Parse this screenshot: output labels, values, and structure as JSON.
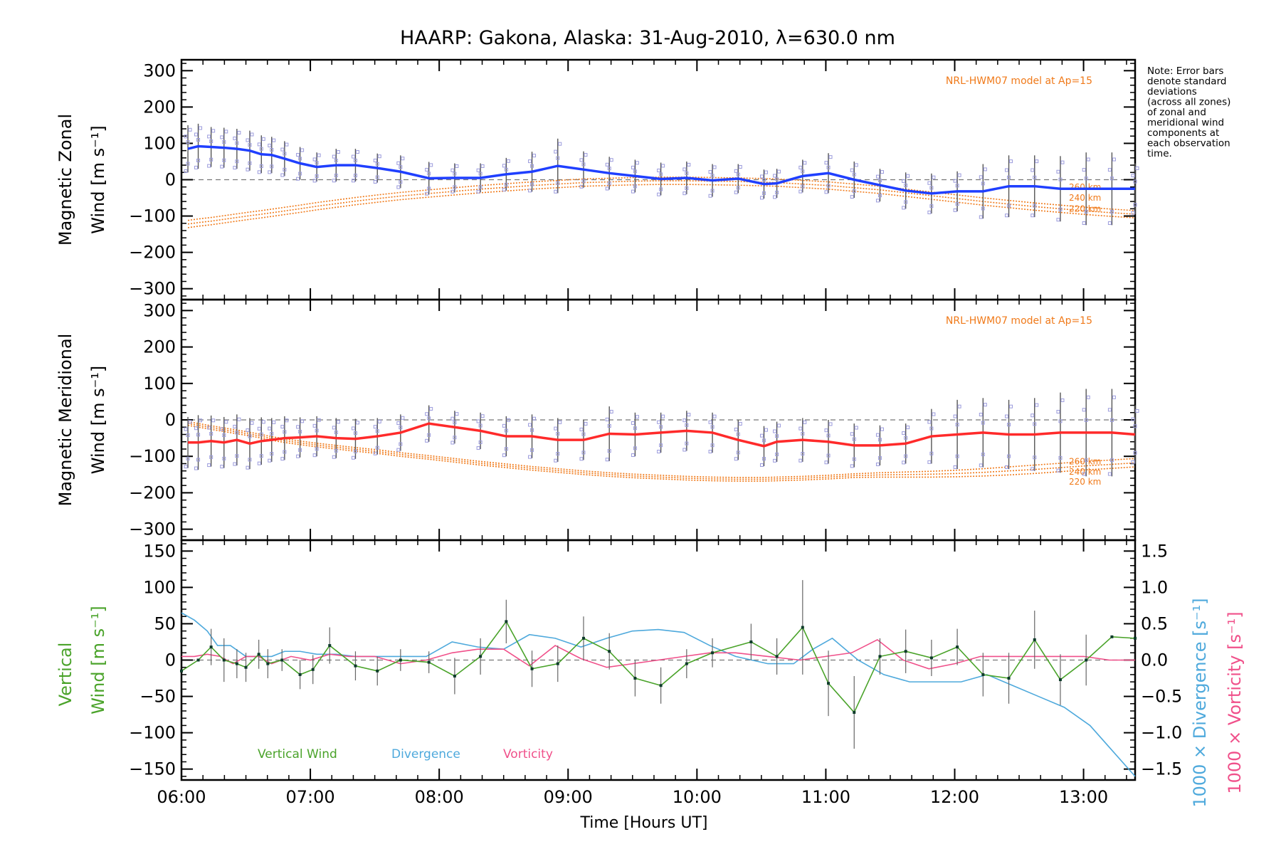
{
  "title": "HAARP: Gakona,  Alaska: 31-Aug-2010, λ=630.0 nm",
  "note_lines": [
    "Note: Error bars",
    "denote standard",
    "deviations",
    "(across all zones)",
    "of zonal and",
    "meridional wind",
    "components at",
    "each observation",
    "time."
  ],
  "x_axis": {
    "label": "Time [Hours UT]",
    "ticks": [
      "06:00",
      "07:00",
      "08:00",
      "09:00",
      "10:00",
      "11:00",
      "12:00",
      "13:00"
    ],
    "tick_hours": [
      6,
      7,
      8,
      9,
      10,
      11,
      12,
      13
    ],
    "range": [
      6.0,
      13.4
    ]
  },
  "panels": {
    "zonal": {
      "ylabel_line1": "Magnetic Zonal",
      "ylabel_line2": "Wind [m s⁻¹]",
      "yticks": [
        "300",
        "200",
        "100",
        "0",
        "−100",
        "−200",
        "−300"
      ],
      "ytick_values": [
        300,
        200,
        100,
        0,
        -100,
        -200,
        -300
      ],
      "model_label": "NRL-HWM07 model at Ap=15",
      "model_alt_labels": [
        "260 km",
        "240 km",
        "220 km"
      ]
    },
    "meridional": {
      "ylabel_line1": "Magnetic Meridional",
      "ylabel_line2": "Wind [m s⁻¹]",
      "yticks": [
        "300",
        "200",
        "100",
        "0",
        "−100",
        "−200",
        "−300"
      ],
      "ytick_values": [
        300,
        200,
        100,
        0,
        -100,
        -200,
        -300
      ],
      "model_label": "NRL-HWM07 model at Ap=15",
      "model_alt_labels": [
        "260 km",
        "240 km",
        "220 km"
      ]
    },
    "vertical": {
      "ylabel_line1": "Vertical",
      "ylabel_line2": "Wind [m s⁻¹]",
      "yticks": [
        "150",
        "100",
        "50",
        "0",
        "−50",
        "−100",
        "−150"
      ],
      "ytick_values": [
        150,
        100,
        50,
        0,
        -50,
        -100,
        -150
      ],
      "right_yticks": [
        "1.5",
        "1.0",
        "0.5",
        "0.0",
        "−0.5",
        "−1.0",
        "−1.5"
      ],
      "right_ytick_values": [
        1.5,
        1.0,
        0.5,
        0.0,
        -0.5,
        -1.0,
        -1.5
      ],
      "right_label_div": "1000 × Divergence [s⁻¹]",
      "right_label_vort": "1000 × Vorticity [s⁻¹]",
      "legend": [
        "Vertical Wind",
        "Divergence",
        "Vorticity"
      ]
    }
  },
  "colors": {
    "zonal": "#1f3fff",
    "meridional": "#ff2a2a",
    "vertical": "#4aa32a",
    "divergence": "#4ea9dc",
    "vorticity": "#f0508a",
    "model": "#f07a1a",
    "scatter": "#9b9bdc",
    "errorbar": "#555555"
  },
  "chart_data": [
    {
      "type": "line",
      "title": "HAARP: Gakona,  Alaska: 31-Aug-2010, λ=630.0 nm",
      "xlabel": "Time [Hours UT]",
      "ylabel": "Magnetic Zonal Wind [m s⁻¹]",
      "ylim": [
        -330,
        330
      ],
      "xlim": [
        6.0,
        13.4
      ],
      "x": [
        6.05,
        6.13,
        6.23,
        6.33,
        6.43,
        6.53,
        6.62,
        6.7,
        6.8,
        6.92,
        7.05,
        7.2,
        7.35,
        7.52,
        7.7,
        7.92,
        8.12,
        8.32,
        8.52,
        8.72,
        8.92,
        9.12,
        9.32,
        9.52,
        9.72,
        9.92,
        10.12,
        10.32,
        10.52,
        10.62,
        10.82,
        11.02,
        11.22,
        11.42,
        11.62,
        11.82,
        12.02,
        12.22,
        12.42,
        12.62,
        12.82,
        13.02,
        13.22,
        13.4
      ],
      "series": [
        {
          "name": "Zonal",
          "values": [
            85,
            92,
            90,
            88,
            85,
            80,
            70,
            68,
            58,
            45,
            35,
            40,
            40,
            32,
            22,
            4,
            5,
            5,
            15,
            22,
            38,
            28,
            18,
            10,
            2,
            5,
            -2,
            3,
            -12,
            -10,
            10,
            18,
            0,
            -15,
            -30,
            -38,
            -32,
            -32,
            -18,
            -18,
            -25,
            -25,
            -25,
            -25
          ],
          "errors": [
            65,
            62,
            55,
            55,
            55,
            55,
            52,
            50,
            48,
            45,
            40,
            45,
            45,
            40,
            45,
            45,
            40,
            40,
            45,
            55,
            75,
            50,
            45,
            45,
            45,
            45,
            45,
            40,
            40,
            40,
            45,
            55,
            50,
            45,
            50,
            55,
            55,
            75,
            85,
            85,
            90,
            100,
            100,
            70
          ]
        },
        {
          "name": "260 km",
          "values": [
            -112,
            -108,
            -104,
            -99,
            -94,
            -89,
            -85,
            -81,
            -76,
            -70,
            -63,
            -56,
            -49,
            -42,
            -35,
            -28,
            -22,
            -16,
            -11,
            -6,
            -2,
            2,
            4,
            6,
            7,
            7,
            6,
            5,
            3,
            2,
            -2,
            -6,
            -12,
            -18,
            -26,
            -34,
            -42,
            -50,
            -57,
            -64,
            -70,
            -76,
            -81,
            -85
          ]
        },
        {
          "name": "240 km",
          "values": [
            -122,
            -118,
            -114,
            -109,
            -104,
            -99,
            -95,
            -91,
            -86,
            -80,
            -73,
            -66,
            -59,
            -52,
            -45,
            -38,
            -32,
            -26,
            -21,
            -16,
            -12,
            -8,
            -6,
            -4,
            -3,
            -3,
            -4,
            -5,
            -7,
            -8,
            -12,
            -16,
            -22,
            -28,
            -36,
            -44,
            -52,
            -60,
            -67,
            -74,
            -80,
            -86,
            -91,
            -95
          ]
        },
        {
          "name": "220 km",
          "values": [
            -132,
            -128,
            -124,
            -119,
            -114,
            -109,
            -105,
            -101,
            -96,
            -90,
            -83,
            -76,
            -69,
            -62,
            -55,
            -48,
            -42,
            -36,
            -31,
            -26,
            -22,
            -18,
            -16,
            -14,
            -13,
            -13,
            -14,
            -15,
            -17,
            -18,
            -22,
            -26,
            -32,
            -38,
            -46,
            -54,
            -62,
            -70,
            -77,
            -84,
            -90,
            -96,
            -101,
            -105
          ]
        }
      ],
      "model_label": "NRL-HWM07 model at Ap=15"
    },
    {
      "type": "line",
      "xlabel": "Time [Hours UT]",
      "ylabel": "Magnetic Meridional Wind [m s⁻¹]",
      "ylim": [
        -330,
        330
      ],
      "xlim": [
        6.0,
        13.4
      ],
      "x": [
        6.05,
        6.13,
        6.23,
        6.33,
        6.43,
        6.53,
        6.62,
        6.7,
        6.8,
        6.92,
        7.05,
        7.2,
        7.35,
        7.52,
        7.7,
        7.92,
        8.12,
        8.32,
        8.52,
        8.72,
        8.92,
        9.12,
        9.32,
        9.52,
        9.72,
        9.92,
        10.12,
        10.32,
        10.52,
        10.62,
        10.82,
        11.02,
        11.22,
        11.42,
        11.62,
        11.82,
        12.02,
        12.22,
        12.42,
        12.62,
        12.82,
        13.02,
        13.22,
        13.4
      ],
      "series": [
        {
          "name": "Meridional",
          "values": [
            -62,
            -62,
            -58,
            -62,
            -55,
            -65,
            -58,
            -55,
            -50,
            -48,
            -45,
            -50,
            -52,
            -45,
            -35,
            -10,
            -20,
            -30,
            -45,
            -45,
            -55,
            -55,
            -38,
            -40,
            -35,
            -30,
            -35,
            -55,
            -72,
            -60,
            -55,
            -60,
            -70,
            -70,
            -65,
            -45,
            -40,
            -35,
            -40,
            -40,
            -35,
            -35,
            -35,
            -40
          ],
          "errors": [
            70,
            75,
            70,
            70,
            70,
            70,
            65,
            60,
            60,
            55,
            55,
            55,
            55,
            50,
            50,
            50,
            45,
            50,
            55,
            60,
            60,
            55,
            75,
            60,
            55,
            55,
            55,
            55,
            55,
            55,
            60,
            60,
            60,
            55,
            55,
            75,
            95,
            95,
            95,
            100,
            110,
            120,
            120,
            80
          ]
        },
        {
          "name": "260 km",
          "values": [
            -5,
            -10,
            -16,
            -22,
            -28,
            -34,
            -40,
            -46,
            -52,
            -58,
            -64,
            -70,
            -76,
            -82,
            -90,
            -98,
            -106,
            -114,
            -121,
            -128,
            -134,
            -140,
            -145,
            -149,
            -152,
            -155,
            -157,
            -158,
            -158,
            -157,
            -155,
            -152,
            -148,
            -145,
            -143,
            -141,
            -138,
            -134,
            -129,
            -124,
            -119,
            -114,
            -110,
            -106
          ]
        },
        {
          "name": "240 km",
          "values": [
            -10,
            -15,
            -21,
            -27,
            -33,
            -39,
            -45,
            -51,
            -57,
            -63,
            -69,
            -75,
            -81,
            -87,
            -95,
            -103,
            -111,
            -119,
            -126,
            -133,
            -139,
            -145,
            -150,
            -154,
            -157,
            -160,
            -162,
            -163,
            -163,
            -162,
            -160,
            -157,
            -153,
            -151,
            -150,
            -149,
            -147,
            -144,
            -140,
            -136,
            -131,
            -126,
            -122,
            -118
          ]
        },
        {
          "name": "220 km",
          "values": [
            -15,
            -20,
            -26,
            -32,
            -38,
            -44,
            -50,
            -56,
            -62,
            -68,
            -74,
            -80,
            -86,
            -92,
            -100,
            -108,
            -116,
            -124,
            -131,
            -138,
            -144,
            -150,
            -155,
            -159,
            -162,
            -165,
            -167,
            -168,
            -168,
            -167,
            -165,
            -162,
            -158,
            -157,
            -157,
            -157,
            -156,
            -154,
            -151,
            -147,
            -142,
            -137,
            -133,
            -129
          ]
        }
      ],
      "model_label": "NRL-HWM07 model at Ap=15"
    },
    {
      "type": "line",
      "xlabel": "Time [Hours UT]",
      "ylabel": "Vertical Wind [m s⁻¹]",
      "ylim": [
        -165,
        165
      ],
      "xlim": [
        6.0,
        13.4
      ],
      "right_ylabel": "1000 × Divergence [s⁻¹] / 1000 × Vorticity [s⁻¹]",
      "right_ylim": [
        -1.65,
        1.65
      ],
      "series": [
        {
          "name": "Vertical Wind",
          "axis": "left",
          "x": [
            6.0,
            6.13,
            6.23,
            6.33,
            6.43,
            6.5,
            6.6,
            6.67,
            6.78,
            6.92,
            7.02,
            7.15,
            7.35,
            7.52,
            7.7,
            7.92,
            8.12,
            8.32,
            8.52,
            8.72,
            8.92,
            9.12,
            9.32,
            9.52,
            9.72,
            9.92,
            10.12,
            10.42,
            10.62,
            10.82,
            11.02,
            11.22,
            11.42,
            11.62,
            11.82,
            12.02,
            12.22,
            12.42,
            12.62,
            12.82,
            13.02,
            13.22,
            13.4
          ],
          "values": [
            -15,
            0,
            18,
            0,
            -5,
            -10,
            8,
            -5,
            0,
            -20,
            -13,
            20,
            -8,
            -15,
            0,
            -3,
            -22,
            5,
            53,
            -12,
            -5,
            30,
            12,
            -25,
            -35,
            -5,
            10,
            25,
            5,
            45,
            -32,
            -72,
            5,
            12,
            3,
            18,
            -20,
            -25,
            28,
            -27,
            0,
            32,
            30
          ],
          "errors": [
            0,
            0,
            25,
            30,
            20,
            20,
            20,
            20,
            15,
            20,
            20,
            25,
            20,
            20,
            15,
            15,
            25,
            25,
            30,
            25,
            25,
            30,
            25,
            25,
            25,
            20,
            20,
            25,
            25,
            65,
            45,
            50,
            25,
            30,
            25,
            25,
            30,
            35,
            40,
            35,
            35,
            0,
            0
          ]
        },
        {
          "name": "Divergence",
          "axis": "right",
          "x": [
            6.0,
            6.1,
            6.2,
            6.28,
            6.38,
            6.5,
            6.6,
            6.7,
            6.8,
            6.92,
            7.05,
            7.2,
            7.35,
            7.55,
            7.75,
            7.9,
            8.1,
            8.3,
            8.5,
            8.7,
            8.9,
            9.1,
            9.3,
            9.5,
            9.7,
            9.9,
            10.1,
            10.3,
            10.55,
            10.75,
            10.9,
            11.05,
            11.25,
            11.45,
            11.65,
            11.85,
            12.05,
            12.25,
            12.45,
            12.65,
            12.85,
            13.05,
            13.2,
            13.4
          ],
          "values": [
            0.65,
            0.55,
            0.4,
            0.2,
            0.2,
            0.05,
            0.05,
            0.05,
            0.12,
            0.12,
            0.08,
            0.08,
            0.05,
            0.05,
            0.05,
            0.05,
            0.25,
            0.18,
            0.15,
            0.35,
            0.3,
            0.18,
            0.3,
            0.4,
            0.42,
            0.38,
            0.2,
            0.05,
            -0.05,
            -0.05,
            0.15,
            0.3,
            0.0,
            -0.2,
            -0.3,
            -0.3,
            -0.3,
            -0.2,
            -0.35,
            -0.5,
            -0.65,
            -0.9,
            -1.2,
            -1.6
          ]
        },
        {
          "name": "Vorticity",
          "axis": "right",
          "x": [
            6.0,
            6.1,
            6.2,
            6.3,
            6.4,
            6.5,
            6.6,
            6.7,
            6.85,
            7.0,
            7.15,
            7.3,
            7.5,
            7.7,
            7.9,
            8.1,
            8.3,
            8.5,
            8.7,
            8.9,
            9.1,
            9.3,
            9.5,
            9.7,
            9.9,
            10.1,
            10.3,
            10.55,
            10.8,
            11.0,
            11.2,
            11.4,
            11.6,
            11.8,
            12.0,
            12.2,
            12.4,
            12.6,
            12.8,
            13.0,
            13.2,
            13.4
          ],
          "values": [
            0.05,
            0.05,
            0.08,
            0.05,
            -0.05,
            0.05,
            0.05,
            -0.05,
            0.05,
            0.0,
            0.08,
            0.05,
            0.05,
            -0.05,
            0.0,
            0.1,
            0.15,
            0.15,
            -0.08,
            0.2,
            0.02,
            -0.1,
            -0.05,
            0.0,
            0.05,
            0.1,
            0.1,
            0.05,
            0.0,
            0.05,
            0.1,
            0.28,
            0.0,
            -0.12,
            -0.05,
            0.05,
            0.05,
            0.05,
            0.05,
            0.05,
            0.0,
            0.0
          ]
        }
      ]
    }
  ]
}
